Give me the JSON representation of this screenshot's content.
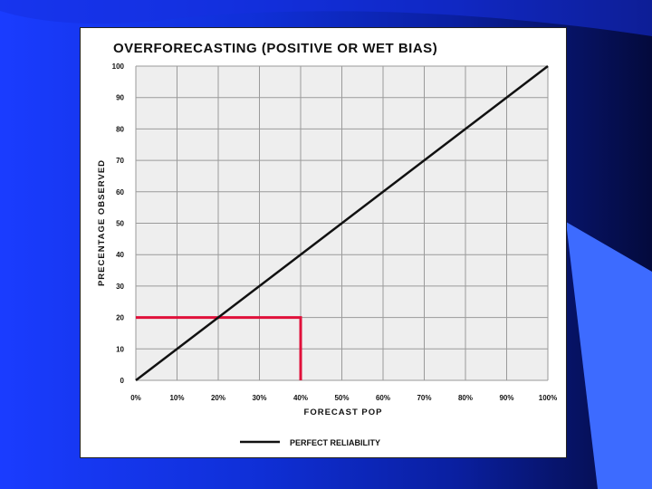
{
  "chart_data": {
    "type": "line",
    "title": "OVERFORECASTING (POSITIVE OR WET BIAS)",
    "xlabel": "FORECAST POP",
    "ylabel": "PRECENTAGE OBSERVED",
    "x_ticks": [
      "0%",
      "10%",
      "20%",
      "30%",
      "40%",
      "50%",
      "60%",
      "70%",
      "80%",
      "90%",
      "100%"
    ],
    "y_ticks": [
      "0",
      "10",
      "20",
      "30",
      "40",
      "50",
      "60",
      "70",
      "80",
      "90",
      "100"
    ],
    "xlim": [
      0,
      100
    ],
    "ylim": [
      0,
      100
    ],
    "grid": true,
    "legend_position": "bottom-center",
    "series": [
      {
        "name": "PERFECT RELIABILITY",
        "color": "#111111",
        "x": [
          0,
          100
        ],
        "y": [
          0,
          100
        ]
      }
    ],
    "annotations": [
      {
        "type": "highlight-path",
        "color": "#e0103a",
        "x": [
          0,
          40,
          40
        ],
        "y": [
          20,
          20,
          0
        ]
      }
    ]
  }
}
